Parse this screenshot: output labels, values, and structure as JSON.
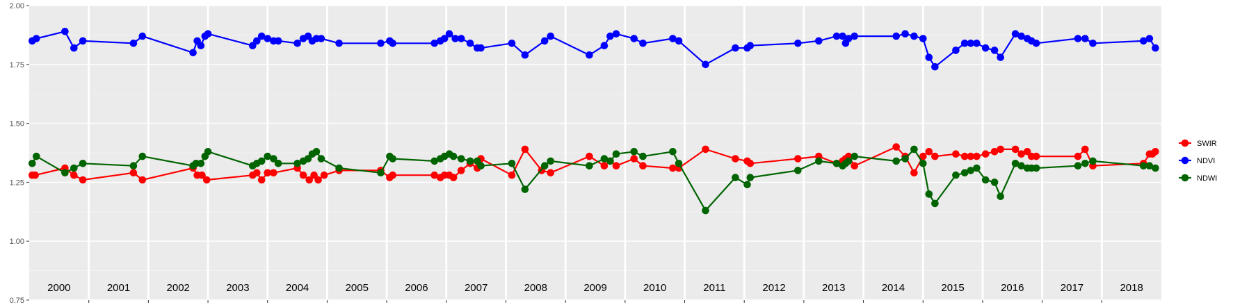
{
  "chart_data": {
    "type": "line",
    "title": "",
    "xlabel": "",
    "ylabel": "",
    "ylim": [
      0.75,
      2.0
    ],
    "yticks": [
      "0.75",
      "1.00",
      "1.25",
      "1.50",
      "1.75",
      "2.00"
    ],
    "xlim": [
      2000.0,
      2019.0
    ],
    "year_labels": [
      "2000",
      "2001",
      "2002",
      "2003",
      "2004",
      "2005",
      "2006",
      "2007",
      "2008",
      "2009",
      "2010",
      "2011",
      "2012",
      "2013",
      "2014",
      "2015",
      "2016",
      "2017",
      "2018"
    ],
    "grid": true,
    "legend_position": "right",
    "series": [
      {
        "name": "SWIR",
        "color": "#ff0000",
        "x": [
          2000.05,
          2000.1,
          2000.6,
          2000.75,
          2000.9,
          2001.75,
          2001.9,
          2002.75,
          2002.82,
          2002.9,
          2002.98,
          2003.75,
          2003.82,
          2003.9,
          2004.0,
          2004.1,
          2004.5,
          2004.6,
          2004.7,
          2004.78,
          2004.85,
          2004.95,
          2005.2,
          2005.9,
          2006.05,
          2006.1,
          2006.8,
          2006.9,
          2006.97,
          2007.05,
          2007.12,
          2007.25,
          2007.4,
          2007.52,
          2007.58,
          2008.1,
          2008.32,
          2008.6,
          2008.75,
          2009.4,
          2009.65,
          2009.75,
          2009.85,
          2010.15,
          2010.3,
          2010.8,
          2010.9,
          2011.35,
          2011.85,
          2012.05,
          2012.1,
          2012.9,
          2013.25,
          2013.55,
          2013.65,
          2013.7,
          2013.75,
          2013.85,
          2014.55,
          2014.7,
          2014.85,
          2015.0,
          2015.1,
          2015.2,
          2015.55,
          2015.7,
          2015.8,
          2015.9,
          2016.05,
          2016.2,
          2016.3,
          2016.55,
          2016.65,
          2016.75,
          2016.82,
          2016.9,
          2017.6,
          2017.72,
          2017.85,
          2018.7,
          2018.8,
          2018.85,
          2018.9
        ],
        "y": [
          1.28,
          1.28,
          1.31,
          1.28,
          1.26,
          1.29,
          1.26,
          1.31,
          1.28,
          1.28,
          1.26,
          1.28,
          1.29,
          1.26,
          1.29,
          1.29,
          1.31,
          1.28,
          1.26,
          1.28,
          1.26,
          1.28,
          1.3,
          1.3,
          1.27,
          1.28,
          1.28,
          1.27,
          1.28,
          1.28,
          1.27,
          1.3,
          1.33,
          1.31,
          1.35,
          1.28,
          1.39,
          1.3,
          1.29,
          1.36,
          1.32,
          1.34,
          1.32,
          1.35,
          1.32,
          1.31,
          1.31,
          1.39,
          1.35,
          1.34,
          1.33,
          1.35,
          1.36,
          1.33,
          1.34,
          1.35,
          1.36,
          1.32,
          1.4,
          1.36,
          1.29,
          1.36,
          1.38,
          1.36,
          1.37,
          1.36,
          1.36,
          1.36,
          1.37,
          1.38,
          1.39,
          1.39,
          1.37,
          1.38,
          1.36,
          1.36,
          1.36,
          1.39,
          1.32,
          1.33,
          1.37,
          1.37,
          1.38
        ]
      },
      {
        "name": "NDVI",
        "color": "#0000ff",
        "x": [
          2000.05,
          2000.12,
          2000.6,
          2000.75,
          2000.9,
          2001.75,
          2001.9,
          2002.75,
          2002.82,
          2002.88,
          2002.95,
          2003.0,
          2003.75,
          2003.82,
          2003.9,
          2004.0,
          2004.1,
          2004.18,
          2004.5,
          2004.6,
          2004.68,
          2004.75,
          2004.82,
          2004.9,
          2005.2,
          2005.9,
          2006.05,
          2006.1,
          2006.8,
          2006.9,
          2006.97,
          2007.05,
          2007.15,
          2007.25,
          2007.4,
          2007.52,
          2007.58,
          2008.1,
          2008.32,
          2008.65,
          2008.75,
          2009.4,
          2009.65,
          2009.75,
          2009.85,
          2010.15,
          2010.3,
          2010.8,
          2010.9,
          2011.35,
          2011.85,
          2012.05,
          2012.1,
          2012.9,
          2013.25,
          2013.55,
          2013.65,
          2013.7,
          2013.75,
          2013.85,
          2014.55,
          2014.7,
          2014.85,
          2015.0,
          2015.1,
          2015.2,
          2015.55,
          2015.7,
          2015.8,
          2015.9,
          2016.05,
          2016.2,
          2016.3,
          2016.55,
          2016.65,
          2016.75,
          2016.82,
          2016.9,
          2017.6,
          2017.72,
          2017.85,
          2018.7,
          2018.8,
          2018.9
        ],
        "y": [
          1.85,
          1.86,
          1.89,
          1.82,
          1.85,
          1.84,
          1.87,
          1.8,
          1.85,
          1.83,
          1.87,
          1.88,
          1.83,
          1.85,
          1.87,
          1.86,
          1.85,
          1.85,
          1.84,
          1.86,
          1.87,
          1.85,
          1.86,
          1.86,
          1.84,
          1.84,
          1.85,
          1.84,
          1.84,
          1.85,
          1.86,
          1.88,
          1.86,
          1.86,
          1.84,
          1.82,
          1.82,
          1.84,
          1.79,
          1.85,
          1.87,
          1.79,
          1.83,
          1.87,
          1.88,
          1.86,
          1.84,
          1.86,
          1.85,
          1.75,
          1.82,
          1.82,
          1.83,
          1.84,
          1.85,
          1.87,
          1.87,
          1.84,
          1.86,
          1.87,
          1.87,
          1.88,
          1.87,
          1.86,
          1.78,
          1.74,
          1.81,
          1.84,
          1.84,
          1.84,
          1.82,
          1.81,
          1.78,
          1.88,
          1.87,
          1.86,
          1.85,
          1.84,
          1.86,
          1.86,
          1.84,
          1.85,
          1.86,
          1.82
        ]
      },
      {
        "name": "NDWI",
        "color": "#006400",
        "x": [
          2000.05,
          2000.12,
          2000.6,
          2000.75,
          2000.9,
          2001.75,
          2001.9,
          2002.75,
          2002.8,
          2002.88,
          2002.95,
          2003.0,
          2003.75,
          2003.82,
          2003.9,
          2004.0,
          2004.1,
          2004.18,
          2004.5,
          2004.6,
          2004.68,
          2004.75,
          2004.82,
          2004.9,
          2005.2,
          2005.9,
          2006.05,
          2006.1,
          2006.8,
          2006.9,
          2006.97,
          2007.05,
          2007.12,
          2007.25,
          2007.4,
          2007.52,
          2007.58,
          2008.1,
          2008.32,
          2008.65,
          2008.75,
          2009.4,
          2009.65,
          2009.75,
          2009.85,
          2010.15,
          2010.3,
          2010.8,
          2010.9,
          2011.35,
          2011.85,
          2012.05,
          2012.1,
          2012.9,
          2013.25,
          2013.55,
          2013.65,
          2013.7,
          2013.75,
          2013.85,
          2014.55,
          2014.7,
          2014.85,
          2015.0,
          2015.1,
          2015.2,
          2015.55,
          2015.7,
          2015.8,
          2015.9,
          2016.05,
          2016.2,
          2016.3,
          2016.55,
          2016.65,
          2016.75,
          2016.82,
          2016.9,
          2017.6,
          2017.72,
          2017.85,
          2018.7,
          2018.8,
          2018.9
        ],
        "y": [
          1.33,
          1.36,
          1.29,
          1.31,
          1.33,
          1.32,
          1.36,
          1.32,
          1.33,
          1.33,
          1.36,
          1.38,
          1.32,
          1.33,
          1.34,
          1.36,
          1.35,
          1.33,
          1.33,
          1.34,
          1.35,
          1.37,
          1.38,
          1.35,
          1.31,
          1.29,
          1.36,
          1.35,
          1.34,
          1.35,
          1.36,
          1.37,
          1.36,
          1.35,
          1.34,
          1.34,
          1.32,
          1.33,
          1.22,
          1.32,
          1.34,
          1.32,
          1.35,
          1.34,
          1.37,
          1.38,
          1.36,
          1.38,
          1.33,
          1.13,
          1.27,
          1.24,
          1.27,
          1.3,
          1.34,
          1.33,
          1.32,
          1.33,
          1.34,
          1.36,
          1.34,
          1.35,
          1.39,
          1.33,
          1.2,
          1.16,
          1.28,
          1.29,
          1.3,
          1.31,
          1.26,
          1.25,
          1.19,
          1.33,
          1.32,
          1.31,
          1.31,
          1.31,
          1.32,
          1.33,
          1.34,
          1.32,
          1.32,
          1.31
        ]
      }
    ],
    "legend_order": [
      "SWIR",
      "NDVI",
      "NDWI"
    ]
  }
}
